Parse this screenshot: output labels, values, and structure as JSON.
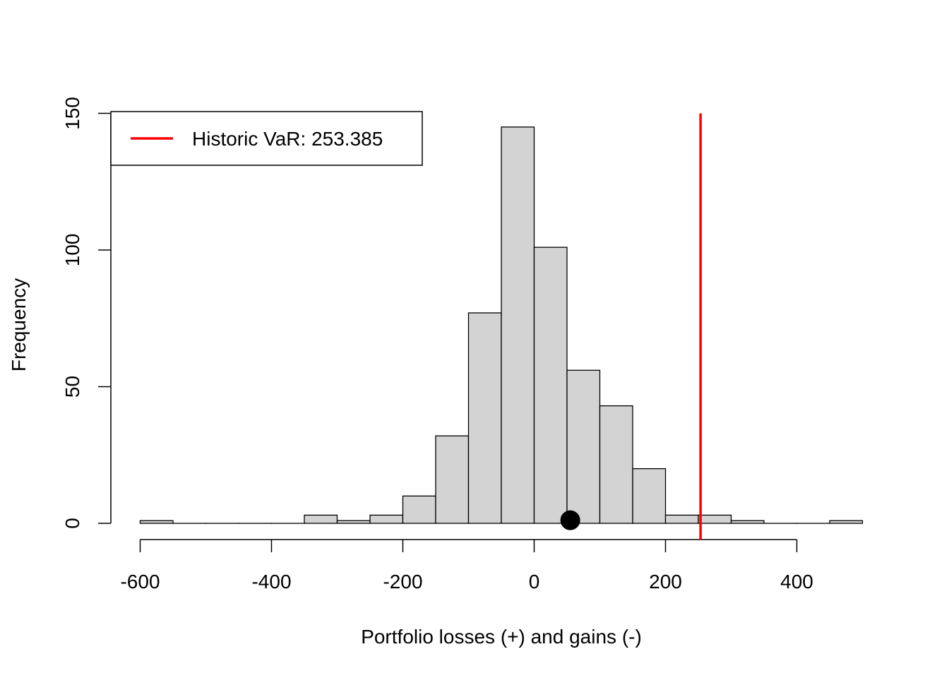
{
  "chart_data": {
    "type": "bar",
    "title": "",
    "xlabel": "Portfolio losses (+) and gains (-)",
    "ylabel": "Frequency",
    "bin_width": 50,
    "bins": [
      {
        "x0": -600,
        "x1": -550,
        "count": 1
      },
      {
        "x0": -550,
        "x1": -500,
        "count": 0
      },
      {
        "x0": -500,
        "x1": -450,
        "count": 0
      },
      {
        "x0": -450,
        "x1": -400,
        "count": 0
      },
      {
        "x0": -400,
        "x1": -350,
        "count": 0
      },
      {
        "x0": -350,
        "x1": -300,
        "count": 3
      },
      {
        "x0": -300,
        "x1": -250,
        "count": 1
      },
      {
        "x0": -250,
        "x1": -200,
        "count": 3
      },
      {
        "x0": -200,
        "x1": -150,
        "count": 10
      },
      {
        "x0": -150,
        "x1": -100,
        "count": 32
      },
      {
        "x0": -100,
        "x1": -50,
        "count": 77
      },
      {
        "x0": -50,
        "x1": 0,
        "count": 145
      },
      {
        "x0": 0,
        "x1": 50,
        "count": 101
      },
      {
        "x0": 50,
        "x1": 100,
        "count": 56
      },
      {
        "x0": 100,
        "x1": 150,
        "count": 43
      },
      {
        "x0": 150,
        "x1": 200,
        "count": 20
      },
      {
        "x0": 200,
        "x1": 250,
        "count": 3
      },
      {
        "x0": 250,
        "x1": 300,
        "count": 3
      },
      {
        "x0": 300,
        "x1": 350,
        "count": 1
      },
      {
        "x0": 350,
        "x1": 400,
        "count": 0
      },
      {
        "x0": 400,
        "x1": 450,
        "count": 0
      },
      {
        "x0": 450,
        "x1": 500,
        "count": 1
      }
    ],
    "xlim": [
      -600,
      500
    ],
    "ylim": [
      0,
      150
    ],
    "x_ticks": [
      -600,
      -400,
      -200,
      0,
      200,
      400
    ],
    "x_tick_labels": [
      "-600",
      "-400",
      "-200",
      "0",
      "200",
      "400"
    ],
    "y_ticks": [
      0,
      50,
      100,
      150
    ],
    "y_tick_labels": [
      "0",
      "50",
      "100",
      "150"
    ],
    "var_line": {
      "x": 253.385,
      "color": "#ff0000"
    },
    "point": {
      "x": 55,
      "y": 1,
      "color": "#000000"
    },
    "bar_fill": "#d3d3d3",
    "legend": {
      "position": "top-left",
      "entries": [
        {
          "label": "Historic VaR: 253.385",
          "color": "#ff0000"
        }
      ]
    },
    "grid": false
  }
}
